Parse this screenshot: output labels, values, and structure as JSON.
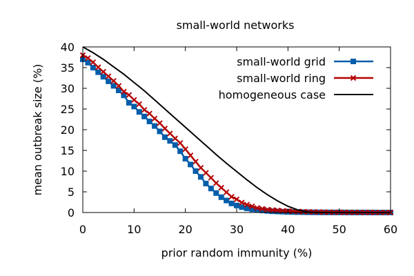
{
  "chart_data": {
    "type": "line",
    "title": "small-world networks",
    "xlabel": "prior random immunity (%)",
    "ylabel": "mean outbreak size (%)",
    "xlim": [
      0,
      60
    ],
    "ylim": [
      0,
      40
    ],
    "xticks": [
      0,
      10,
      20,
      30,
      40,
      50,
      60
    ],
    "yticks": [
      0,
      5,
      10,
      15,
      20,
      25,
      30,
      35,
      40
    ],
    "grid": false,
    "legend_position": "top-right",
    "series": [
      {
        "name": "small-world grid",
        "color": "#005daa",
        "marker": "square",
        "x": [
          0,
          1,
          2,
          3,
          4,
          5,
          6,
          7,
          8,
          9,
          10,
          11,
          12,
          13,
          14,
          15,
          16,
          17,
          18,
          19,
          20,
          21,
          22,
          23,
          24,
          25,
          26,
          27,
          28,
          29,
          30,
          31,
          32,
          33,
          34,
          35,
          36,
          37,
          38,
          39,
          40,
          41,
          42,
          43,
          44,
          45,
          46,
          47,
          48,
          49,
          50,
          51,
          52,
          53,
          54,
          55,
          56,
          57,
          58,
          59,
          60
        ],
        "y": [
          37.0,
          36.2,
          35.0,
          33.9,
          32.8,
          31.7,
          30.6,
          29.5,
          28.3,
          26.5,
          25.6,
          24.3,
          23.2,
          22.0,
          20.9,
          19.6,
          18.2,
          17.3,
          16.3,
          14.8,
          13.0,
          11.6,
          10.0,
          8.6,
          7.0,
          5.8,
          4.7,
          3.7,
          2.9,
          2.2,
          1.7,
          1.3,
          1.0,
          0.8,
          0.6,
          0.5,
          0.4,
          0.3,
          0.25,
          0.2,
          0.15,
          0.12,
          0.1,
          0.08,
          0.06,
          0.05,
          0.04,
          0.03,
          0.03,
          0.02,
          0.02,
          0.02,
          0.01,
          0.01,
          0.01,
          0.01,
          0.01,
          0.0,
          0.0,
          0.0,
          0.0
        ]
      },
      {
        "name": "small-world ring",
        "color": "#b40000",
        "marker": "cross",
        "x": [
          0,
          1,
          2,
          3,
          4,
          5,
          6,
          7,
          8,
          9,
          10,
          11,
          12,
          13,
          14,
          15,
          16,
          17,
          18,
          19,
          20,
          21,
          22,
          23,
          24,
          25,
          26,
          27,
          28,
          29,
          30,
          31,
          32,
          33,
          34,
          35,
          36,
          37,
          38,
          39,
          40,
          41,
          42,
          43,
          44,
          45,
          46,
          47,
          48,
          49,
          50,
          51,
          52,
          53,
          54,
          55,
          56,
          57,
          58,
          59,
          60
        ],
        "y": [
          38.0,
          37.3,
          36.3,
          35.1,
          34.0,
          32.9,
          31.8,
          30.6,
          29.2,
          28.4,
          27.2,
          26.2,
          24.8,
          23.9,
          22.7,
          21.6,
          20.3,
          19.1,
          17.9,
          16.8,
          15.3,
          13.8,
          12.3,
          10.8,
          9.6,
          8.4,
          7.1,
          6.0,
          4.9,
          3.8,
          3.2,
          2.4,
          1.9,
          1.5,
          1.1,
          0.9,
          0.7,
          0.6,
          0.5,
          0.4,
          0.35,
          0.3,
          0.25,
          0.2,
          0.17,
          0.14,
          0.11,
          0.09,
          0.07,
          0.06,
          0.05,
          0.04,
          0.03,
          0.03,
          0.02,
          0.02,
          0.02,
          0.01,
          0.01,
          0.01,
          0.01
        ]
      },
      {
        "name": "homogeneous case",
        "color": "#000000",
        "marker": "none",
        "x": [
          0,
          2,
          4,
          6,
          8,
          10,
          12,
          14,
          16,
          18,
          20,
          22,
          24,
          26,
          28,
          30,
          32,
          34,
          36,
          38,
          40,
          42,
          44,
          46,
          48,
          50,
          52,
          54,
          56,
          58,
          60
        ],
        "y": [
          40.0,
          38.6,
          37.0,
          35.2,
          33.4,
          31.4,
          29.4,
          27.2,
          25.0,
          22.8,
          20.6,
          18.4,
          16.2,
          14.0,
          11.9,
          9.9,
          7.9,
          6.0,
          4.3,
          2.8,
          1.5,
          0.6,
          0.1,
          0.0,
          0.0,
          0.0,
          0.0,
          0.0,
          0.0,
          0.0,
          0.0
        ]
      }
    ]
  }
}
